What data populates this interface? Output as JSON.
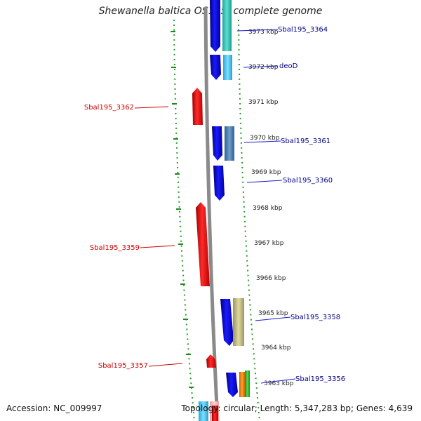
{
  "title": "Shewanella baltica OS195, complete genome",
  "accession": "Accession: NC_009997",
  "topology": "Topology: circular; Length: 5,347,283 bp; Genes: 4,639",
  "colors": {
    "forward_strand": "#0000ee",
    "reverse_strand": "#ee0000",
    "label_blue": "#00008b",
    "label_red": "#cc0000",
    "tick_green": "#228b22",
    "backbone": "#888888"
  },
  "scale_ticks": [
    "3973 kbp",
    "3972 kbp",
    "3971 kbp",
    "3970 kbp",
    "3969 kbp",
    "3968 kbp",
    "3967 kbp",
    "3966 kbp",
    "3965 kbp",
    "3964 kbp",
    "3963 kbp"
  ],
  "gene_labels_right": [
    "Sbal195_3364",
    "deoD",
    "Sbal195_3361",
    "Sbal195_3360",
    "Sbal195_3358",
    "Sbal195_3356"
  ],
  "gene_labels_left": [
    "Sbal195_3362",
    "Sbal195_3359",
    "Sbal195_3357"
  ]
}
